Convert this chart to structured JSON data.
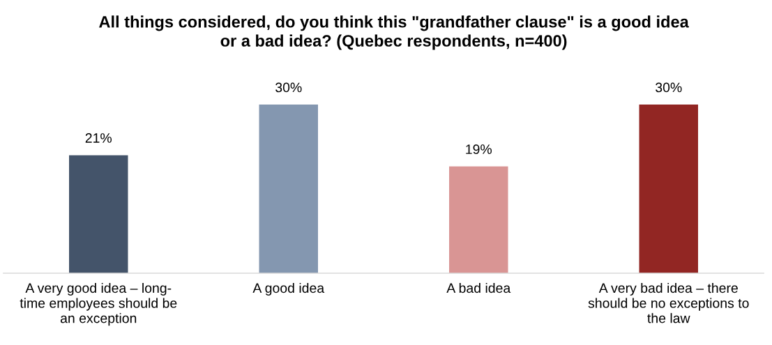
{
  "chart_data": {
    "type": "bar",
    "title": "All things considered, do you think this \"grandfather clause\" is a good idea\nor a bad idea? (Quebec respondents, n=400)",
    "categories": [
      "A very good idea – long-\ntime employees should be\nan exception",
      "A good idea",
      "A bad idea",
      "A very bad idea – there\nshould be no exceptions to\nthe law"
    ],
    "values": [
      21,
      30,
      19,
      30
    ],
    "colors": [
      "#44546a",
      "#8497b0",
      "#d99594",
      "#922623"
    ],
    "value_labels": [
      "21%",
      "30%",
      "19%",
      "30%"
    ]
  }
}
